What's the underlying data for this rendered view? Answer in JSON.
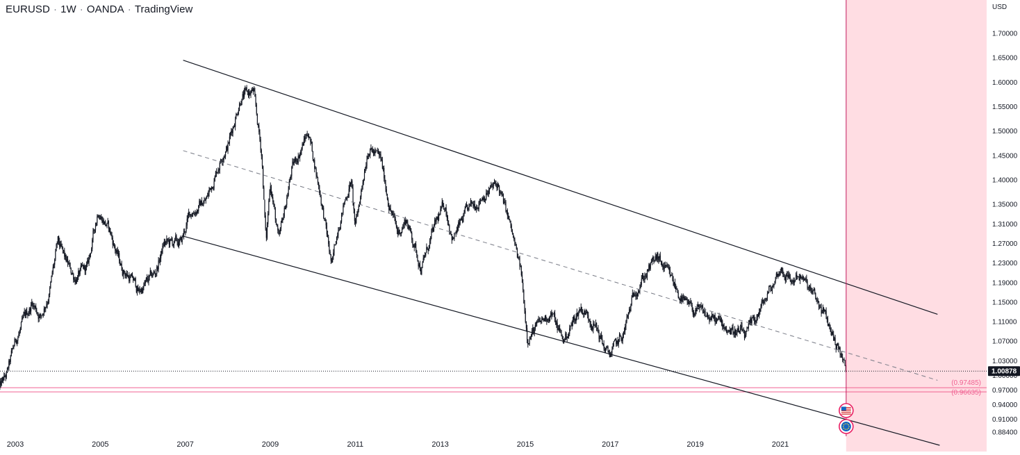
{
  "header": {
    "symbol": "EURUSD",
    "interval": "1W",
    "broker": "OANDA",
    "platform": "TradingView"
  },
  "colors": {
    "candle": "#131722",
    "channel": "#131722",
    "midline": "#787b86",
    "forecast_zone": "#ffdde3",
    "vline": "#c2185b",
    "level": "#f06292",
    "level_text": "#f06292",
    "price_badge_bg": "#131722",
    "price_badge_fg": "#ffffff"
  },
  "chart_data": {
    "type": "candlestick",
    "symbol": "EURUSD",
    "interval": "1W",
    "currency": "USD",
    "ylim": [
      0.865,
      1.735
    ],
    "xlim": [
      2002.6,
      2024.75
    ],
    "y_ticks": [
      "1.70000",
      "1.65000",
      "1.60000",
      "1.55000",
      "1.50000",
      "1.45000",
      "1.40000",
      "1.35000",
      "1.31000",
      "1.27000",
      "1.23000",
      "1.19000",
      "1.15000",
      "1.11000",
      "1.07000",
      "1.03000",
      "1.00000",
      "0.97000",
      "0.94000",
      "0.91000",
      "0.88400"
    ],
    "x_ticks": [
      "2003",
      "2005",
      "2007",
      "2009",
      "2011",
      "2013",
      "2015",
      "2017",
      "2019",
      "2021"
    ],
    "last_price": "1.00878",
    "horizontal_levels": [
      {
        "label": "(0.97485)",
        "value": 0.97485
      },
      {
        "label": "(0.96635)",
        "value": 0.96635
      }
    ],
    "price_path_anchors": [
      [
        2002.6,
        0.97
      ],
      [
        2002.8,
        1.0
      ],
      [
        2003.0,
        1.07
      ],
      [
        2003.4,
        1.15
      ],
      [
        2003.6,
        1.12
      ],
      [
        2003.8,
        1.17
      ],
      [
        2004.0,
        1.27
      ],
      [
        2004.2,
        1.23
      ],
      [
        2004.4,
        1.2
      ],
      [
        2004.7,
        1.22
      ],
      [
        2004.95,
        1.34
      ],
      [
        2005.2,
        1.3
      ],
      [
        2005.5,
        1.22
      ],
      [
        2005.8,
        1.19
      ],
      [
        2005.9,
        1.17
      ],
      [
        2006.3,
        1.21
      ],
      [
        2006.5,
        1.27
      ],
      [
        2006.9,
        1.27
      ],
      [
        2007.1,
        1.33
      ],
      [
        2007.5,
        1.36
      ],
      [
        2007.9,
        1.46
      ],
      [
        2008.0,
        1.47
      ],
      [
        2008.3,
        1.57
      ],
      [
        2008.6,
        1.58
      ],
      [
        2008.8,
        1.45
      ],
      [
        2008.9,
        1.27
      ],
      [
        2009.0,
        1.4
      ],
      [
        2009.2,
        1.27
      ],
      [
        2009.5,
        1.42
      ],
      [
        2009.9,
        1.5
      ],
      [
        2010.2,
        1.36
      ],
      [
        2010.45,
        1.22
      ],
      [
        2010.6,
        1.31
      ],
      [
        2010.9,
        1.4
      ],
      [
        2011.0,
        1.3
      ],
      [
        2011.3,
        1.47
      ],
      [
        2011.6,
        1.44
      ],
      [
        2011.8,
        1.35
      ],
      [
        2012.0,
        1.29
      ],
      [
        2012.2,
        1.32
      ],
      [
        2012.55,
        1.22
      ],
      [
        2012.9,
        1.31
      ],
      [
        2013.1,
        1.35
      ],
      [
        2013.3,
        1.28
      ],
      [
        2013.6,
        1.33
      ],
      [
        2014.0,
        1.37
      ],
      [
        2014.35,
        1.39
      ],
      [
        2014.6,
        1.32
      ],
      [
        2014.9,
        1.21
      ],
      [
        2015.05,
        1.08
      ],
      [
        2015.3,
        1.1
      ],
      [
        2015.6,
        1.13
      ],
      [
        2015.9,
        1.07
      ],
      [
        2016.3,
        1.14
      ],
      [
        2016.6,
        1.11
      ],
      [
        2016.95,
        1.04
      ],
      [
        2017.3,
        1.08
      ],
      [
        2017.6,
        1.18
      ],
      [
        2018.1,
        1.24
      ],
      [
        2018.4,
        1.2
      ],
      [
        2018.8,
        1.14
      ],
      [
        2019.3,
        1.12
      ],
      [
        2019.7,
        1.1
      ],
      [
        2020.2,
        1.08
      ],
      [
        2020.5,
        1.13
      ],
      [
        2020.8,
        1.18
      ],
      [
        2021.0,
        1.22
      ],
      [
        2021.3,
        1.19
      ],
      [
        2021.4,
        1.21
      ],
      [
        2021.8,
        1.16
      ],
      [
        2022.0,
        1.13
      ],
      [
        2022.2,
        1.09
      ],
      [
        2022.4,
        1.05
      ],
      [
        2022.55,
        1.00878
      ]
    ],
    "volatility": 0.009,
    "channel_upper": [
      [
        2006.95,
        1.645
      ],
      [
        2024.7,
        1.125
      ]
    ],
    "channel_lower": [
      [
        2006.95,
        1.285
      ],
      [
        2024.75,
        0.857
      ]
    ],
    "channel_mid": [
      [
        2006.95,
        1.46
      ],
      [
        2024.7,
        0.99
      ]
    ],
    "forecast_zone_start": 2022.55
  },
  "events": [
    {
      "name": "us-flag-event-icon"
    },
    {
      "name": "eu-flag-event-icon"
    }
  ]
}
